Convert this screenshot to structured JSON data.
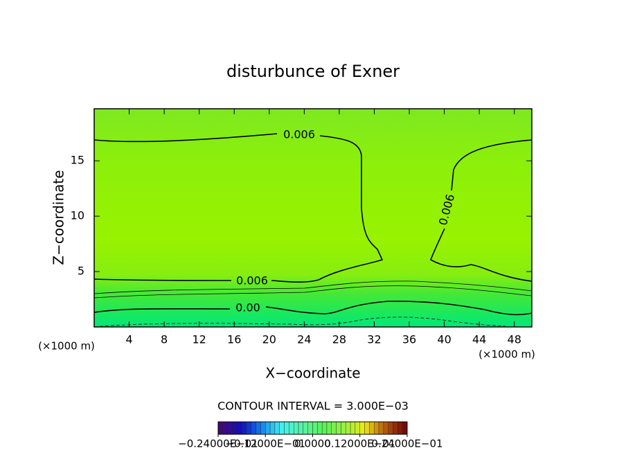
{
  "chart_data": {
    "type": "contour",
    "title": "disturbunce of Exner",
    "x_label": "X−coordinate",
    "y_label": "Z−coordinate",
    "x_unit": "(×1000 m)",
    "y_unit": "(×1000 m)",
    "xlim": [
      0,
      50
    ],
    "xticks": [
      4,
      8,
      12,
      16,
      20,
      24,
      28,
      32,
      36,
      40,
      44,
      48
    ],
    "ylim": [
      0,
      19.7
    ],
    "yticks": [
      5,
      10,
      15
    ],
    "contour_labels": [
      "0.006",
      "0.006",
      "0.006",
      "0.00"
    ],
    "contour_interval": "CONTOUR INTERVAL = 3.000E−03",
    "colorbar_lim": [
      -0.024,
      0.024
    ],
    "colorbar_ticks": [
      {
        "value": -0.024,
        "label": "−0.24000E−01"
      },
      {
        "value": -0.012,
        "label": "−0.12000E−01"
      },
      {
        "value": 0,
        "label": "0.0000"
      },
      {
        "value": 0.012,
        "label": "0.12000E−01"
      },
      {
        "value": 0.024,
        "label": "0.24000E−01"
      }
    ]
  }
}
